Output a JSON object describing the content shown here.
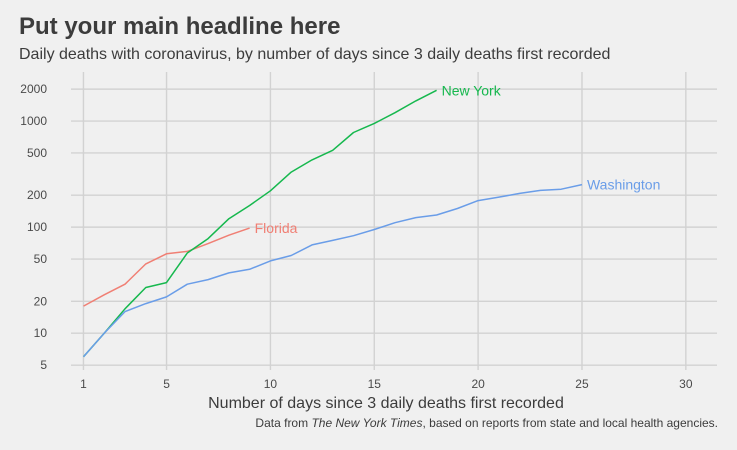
{
  "header": {
    "title": "Put your main headline here",
    "subtitle": "Daily deaths with coronavirus, by number of days since 3 daily deaths first recorded"
  },
  "caption": {
    "prefix": "Data from ",
    "source": "The New York Times",
    "suffix": ", based on reports from state and local health agencies."
  },
  "colors": {
    "background": "#f0f0f0",
    "grid": "#d2d2d2",
    "text": "#3c3c3c"
  },
  "chart_data": {
    "type": "line",
    "xlabel": "Number of days since 3 daily deaths first recorded",
    "ylabel": "",
    "xlim": [
      0.4,
      31.5
    ],
    "ylim": [
      4.5,
      2900
    ],
    "y_scale": "log",
    "grid": true,
    "legend": "direct labels at line ends",
    "x_ticks": [
      1,
      5,
      10,
      15,
      20,
      25,
      30
    ],
    "x_tick_labels": [
      "1",
      "5",
      "10",
      "15",
      "20",
      "25",
      "30"
    ],
    "y_ticks": [
      5,
      10,
      20,
      50,
      100,
      200,
      500,
      1000,
      2000
    ],
    "y_tick_labels": [
      "5",
      "10",
      "20",
      "50",
      "100",
      "200",
      "500",
      "1000",
      "2000"
    ],
    "series": [
      {
        "name": "Florida",
        "color": "#f07f74",
        "x": [
          1,
          2,
          3,
          4,
          5,
          6,
          7,
          8,
          9
        ],
        "y": [
          18,
          23,
          29,
          45,
          56,
          59,
          70,
          84,
          98
        ]
      },
      {
        "name": "New York",
        "color": "#16b84e",
        "x": [
          1,
          2,
          3,
          4,
          5,
          6,
          7,
          8,
          9,
          10,
          11,
          12,
          13,
          14,
          15,
          16,
          17,
          18
        ],
        "y": [
          6,
          10,
          17,
          27,
          30,
          57,
          78,
          120,
          160,
          220,
          330,
          430,
          530,
          780,
          950,
          1200,
          1550,
          1950
        ]
      },
      {
        "name": "Washington",
        "color": "#6a9de8",
        "x": [
          1,
          2,
          3,
          4,
          5,
          6,
          7,
          8,
          9,
          10,
          11,
          12,
          13,
          14,
          15,
          16,
          17,
          18,
          19,
          20,
          21,
          22,
          23,
          24,
          25
        ],
        "y": [
          6,
          10,
          16,
          19,
          22,
          29,
          32,
          37,
          40,
          48,
          54,
          68,
          75,
          83,
          95,
          110,
          123,
          130,
          150,
          178,
          192,
          208,
          222,
          228,
          252
        ]
      }
    ]
  }
}
